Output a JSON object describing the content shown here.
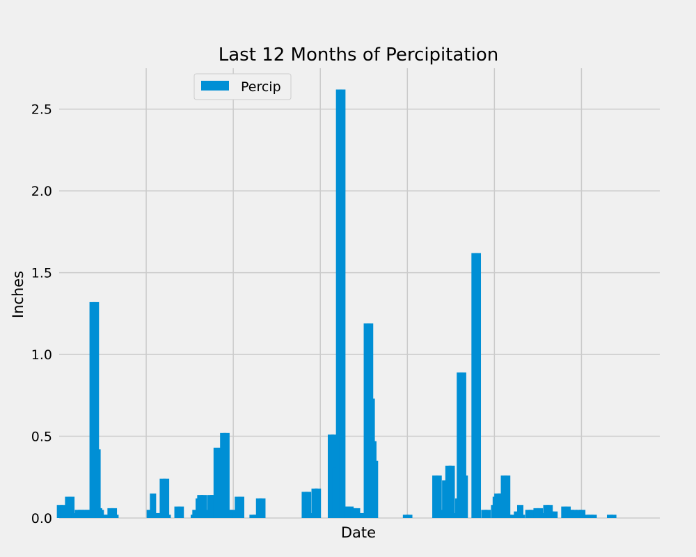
{
  "chart_data": {
    "type": "bar",
    "title": "Last 12 Months of Percipitation",
    "xlabel": "Date",
    "ylabel": "Inches",
    "ylim": [
      0,
      2.75
    ],
    "yticks": [
      0.0,
      0.5,
      1.0,
      1.5,
      2.0,
      2.5
    ],
    "ytick_labels": [
      "0.0",
      "0.5",
      "1.0",
      "1.5",
      "2.0",
      "2.5"
    ],
    "grid": true,
    "legend_position": "upper-center-left",
    "x_count": 368,
    "series": [
      {
        "name": "Percip",
        "color": "#008fd5",
        "points": [
          [
            0,
            0.08
          ],
          [
            2,
            0.08
          ],
          [
            5,
            0.13
          ],
          [
            7,
            0.13
          ],
          [
            9,
            0.03
          ],
          [
            11,
            0.05
          ],
          [
            13,
            0.05
          ],
          [
            15,
            0.05
          ],
          [
            17,
            0.05
          ],
          [
            19,
            0.05
          ],
          [
            20,
            1.32
          ],
          [
            22,
            1.32
          ],
          [
            23,
            0.42
          ],
          [
            24,
            0.06
          ],
          [
            25,
            0.05
          ],
          [
            27,
            0.02
          ],
          [
            29,
            0.02
          ],
          [
            31,
            0.06
          ],
          [
            33,
            0.06
          ],
          [
            34,
            0.02
          ],
          [
            55,
            0.05
          ],
          [
            57,
            0.15
          ],
          [
            59,
            0.03
          ],
          [
            61,
            0.03
          ],
          [
            63,
            0.24
          ],
          [
            65,
            0.24
          ],
          [
            66,
            0.02
          ],
          [
            72,
            0.07
          ],
          [
            74,
            0.07
          ],
          [
            82,
            0.02
          ],
          [
            83,
            0.05
          ],
          [
            85,
            0.12
          ],
          [
            86,
            0.14
          ],
          [
            88,
            0.14
          ],
          [
            90,
            0.05
          ],
          [
            92,
            0.14
          ],
          [
            94,
            0.14
          ],
          [
            95,
            0.12
          ],
          [
            96,
            0.43
          ],
          [
            98,
            0.43
          ],
          [
            100,
            0.52
          ],
          [
            102,
            0.52
          ],
          [
            104,
            0.05
          ],
          [
            106,
            0.05
          ],
          [
            108,
            0.03
          ],
          [
            109,
            0.13
          ],
          [
            111,
            0.13
          ],
          [
            118,
            0.02
          ],
          [
            120,
            0.02
          ],
          [
            122,
            0.12
          ],
          [
            124,
            0.12
          ],
          [
            150,
            0.16
          ],
          [
            152,
            0.16
          ],
          [
            153,
            0.03
          ],
          [
            154,
            0.02
          ],
          [
            156,
            0.18
          ],
          [
            158,
            0.18
          ],
          [
            166,
            0.51
          ],
          [
            168,
            0.51
          ],
          [
            169,
            0.31
          ],
          [
            171,
            2.62
          ],
          [
            173,
            2.62
          ],
          [
            174,
            0.07
          ],
          [
            176,
            0.07
          ],
          [
            178,
            0.07
          ],
          [
            180,
            0.06
          ],
          [
            182,
            0.06
          ],
          [
            184,
            0.03
          ],
          [
            186,
            0.03
          ],
          [
            188,
            1.19
          ],
          [
            190,
            1.19
          ],
          [
            191,
            0.73
          ],
          [
            192,
            0.47
          ],
          [
            193,
            0.35
          ],
          [
            212,
            0.02
          ],
          [
            214,
            0.02
          ],
          [
            230,
            0.26
          ],
          [
            232,
            0.26
          ],
          [
            233,
            0.02
          ],
          [
            235,
            0.05
          ],
          [
            236,
            0.23
          ],
          [
            238,
            0.32
          ],
          [
            240,
            0.32
          ],
          [
            241,
            0.03
          ],
          [
            244,
            0.12
          ],
          [
            245,
            0.89
          ],
          [
            247,
            0.89
          ],
          [
            248,
            0.26
          ],
          [
            254,
            1.62
          ],
          [
            256,
            1.62
          ],
          [
            260,
            0.05
          ],
          [
            262,
            0.05
          ],
          [
            266,
            0.08
          ],
          [
            267,
            0.13
          ],
          [
            268,
            0.15
          ],
          [
            270,
            0.15
          ],
          [
            272,
            0.26
          ],
          [
            274,
            0.26
          ],
          [
            275,
            0.02
          ],
          [
            277,
            0.02
          ],
          [
            280,
            0.04
          ],
          [
            282,
            0.08
          ],
          [
            283,
            0.02
          ],
          [
            287,
            0.05
          ],
          [
            289,
            0.05
          ],
          [
            290,
            0.02
          ],
          [
            292,
            0.06
          ],
          [
            294,
            0.06
          ],
          [
            296,
            0.03
          ],
          [
            298,
            0.08
          ],
          [
            300,
            0.08
          ],
          [
            301,
            0.04
          ],
          [
            303,
            0.04
          ],
          [
            309,
            0.07
          ],
          [
            311,
            0.07
          ],
          [
            313,
            0.05
          ],
          [
            315,
            0.05
          ],
          [
            316,
            0.03
          ],
          [
            318,
            0.05
          ],
          [
            320,
            0.05
          ],
          [
            323,
            0.02
          ],
          [
            325,
            0.02
          ],
          [
            327,
            0.02
          ],
          [
            337,
            0.02
          ],
          [
            339,
            0.02
          ]
        ]
      }
    ]
  }
}
